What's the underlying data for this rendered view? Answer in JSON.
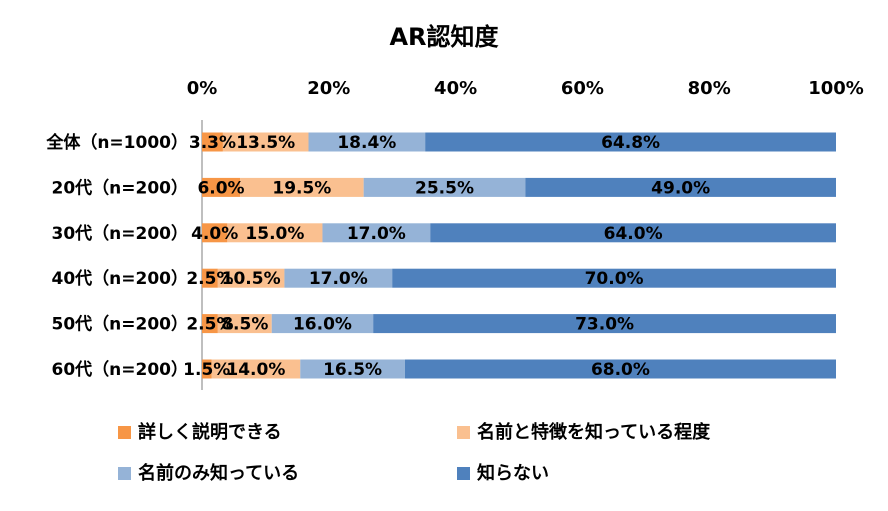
{
  "chart_data": {
    "type": "bar",
    "orientation": "horizontal",
    "stacked": true,
    "title": "AR認知度",
    "xlim": [
      0,
      100
    ],
    "x_ticks": [
      "0%",
      "20%",
      "40%",
      "60%",
      "80%",
      "100%"
    ],
    "grid": false,
    "legend_position": "bottom",
    "categories": [
      "全体（n=1000）",
      "20代（n=200）",
      "30代（n=200）",
      "40代（n=200）",
      "50代（n=200）",
      "60代（n=200）"
    ],
    "series": [
      {
        "name": "詳しく説明できる",
        "color": "#F79646",
        "values": [
          3.3,
          6.0,
          4.0,
          2.5,
          2.5,
          1.5
        ],
        "labels": [
          "3.3%",
          "6.0%",
          "4.0%",
          "2.5%",
          "2.5%",
          "1.5%"
        ]
      },
      {
        "name": "名前と特徴を知っている程度",
        "color": "#FAC090",
        "values": [
          13.5,
          19.5,
          15.0,
          10.5,
          8.5,
          14.0
        ],
        "labels": [
          "13.5%",
          "19.5%",
          "15.0%",
          "10.5%",
          "8.5%",
          "14.0%"
        ]
      },
      {
        "name": "名前のみ知っている",
        "color": "#95B3D7",
        "values": [
          18.4,
          25.5,
          17.0,
          17.0,
          16.0,
          16.5
        ],
        "labels": [
          "18.4%",
          "25.5%",
          "17.0%",
          "17.0%",
          "16.0%",
          "16.5%"
        ]
      },
      {
        "name": "知らない",
        "color": "#4F81BD",
        "values": [
          64.8,
          49.0,
          64.0,
          70.0,
          73.0,
          68.0
        ],
        "labels": [
          "64.8%",
          "49.0%",
          "64.0%",
          "70.0%",
          "73.0%",
          "68.0%"
        ]
      }
    ]
  }
}
